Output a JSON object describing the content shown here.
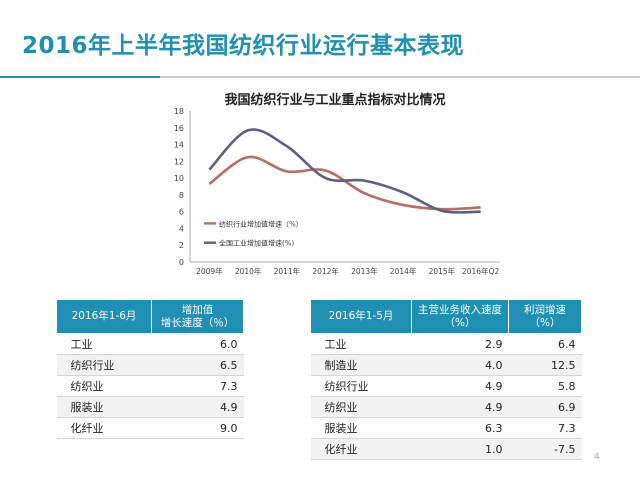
{
  "slide": {
    "title": "2016年上半年我国纺织行业运行基本表现",
    "page_number": "4",
    "accent_color": "#1f8fb3"
  },
  "chart_data": {
    "type": "line",
    "title": "我国纺织行业与工业重点指标对比情况",
    "categories": [
      "2009年",
      "2010年",
      "2011年",
      "2012年",
      "2013年",
      "2014年",
      "2015年",
      "2016年Q2"
    ],
    "ylim": [
      0,
      18
    ],
    "yticks": [
      0,
      2,
      4,
      6,
      8,
      10,
      12,
      14,
      16,
      18
    ],
    "legend_position": "inside-bottom-left",
    "series": [
      {
        "name": "纺织行业增加值增速（%）",
        "color": "#b86f63",
        "values": [
          9.3,
          12.5,
          10.8,
          10.9,
          8.2,
          6.8,
          6.3,
          6.5
        ]
      },
      {
        "name": "全国工业增加值增速(%)",
        "color": "#5c5f88",
        "values": [
          11.0,
          15.7,
          13.8,
          10.0,
          9.7,
          8.3,
          6.1,
          6.0
        ]
      }
    ]
  },
  "table_left": {
    "headers": [
      "2016年1-6月",
      "增加值\n增长速度（％）"
    ],
    "rows": [
      [
        "工业",
        "6.0"
      ],
      [
        "纺织行业",
        "6.5"
      ],
      [
        "纺织业",
        "7.3"
      ],
      [
        "服装业",
        "4.9"
      ],
      [
        "化纤业",
        "9.0"
      ]
    ]
  },
  "table_right": {
    "headers": [
      "2016年1-5月",
      "主营业务收入速度\n（%）",
      "利润增速\n（%）"
    ],
    "rows": [
      [
        "工业",
        "2.9",
        "6.4"
      ],
      [
        "制造业",
        "4.0",
        "12.5"
      ],
      [
        "纺织行业",
        "4.9",
        "5.8"
      ],
      [
        "纺织业",
        "4.9",
        "6.9"
      ],
      [
        "服装业",
        "6.3",
        "7.3"
      ],
      [
        "化纤业",
        "1.0",
        "-7.5"
      ]
    ]
  }
}
